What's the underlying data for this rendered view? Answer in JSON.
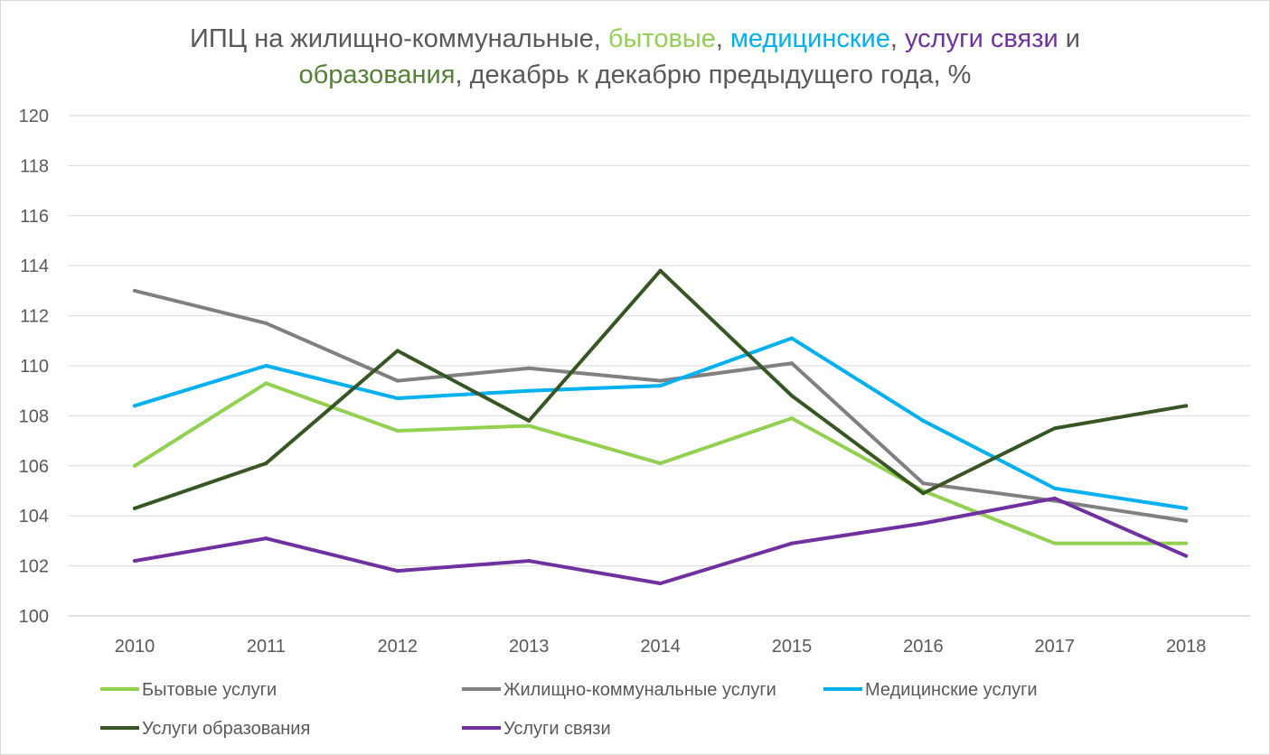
{
  "chart_data": {
    "type": "line",
    "title_segments": [
      {
        "text": "ИПЦ на жилищно-коммунальные, ",
        "color": "#595959"
      },
      {
        "text": "бытовые",
        "color": "#92d050"
      },
      {
        "text": ", ",
        "color": "#595959"
      },
      {
        "text": "медицинские",
        "color": "#00b0f0"
      },
      {
        "text": ", ",
        "color": "#595959"
      },
      {
        "text": "услуги связи",
        "color": "#7030a0"
      },
      {
        "text": " и",
        "color": "#595959"
      },
      {
        "text": "образования",
        "color": "#538135",
        "newline": true
      },
      {
        "text": ", декабрь к декабрю предыдущего года, %",
        "color": "#595959"
      }
    ],
    "categories": [
      "2010",
      "2011",
      "2012",
      "2013",
      "2014",
      "2015",
      "2016",
      "2017",
      "2018"
    ],
    "ylim": [
      100,
      120
    ],
    "yticks": [
      100,
      102,
      104,
      106,
      108,
      110,
      112,
      114,
      116,
      118,
      120
    ],
    "grid": true,
    "legend_position": "bottom",
    "series": [
      {
        "name": "Бытовые услуги",
        "color": "#92d050",
        "values": [
          106.0,
          109.3,
          107.4,
          107.6,
          106.1,
          107.9,
          105.0,
          102.9,
          102.9
        ]
      },
      {
        "name": "Жилищно-коммунальные услуги",
        "color": "#808080",
        "values": [
          113.0,
          111.7,
          109.4,
          109.9,
          109.4,
          110.1,
          105.3,
          104.6,
          103.8
        ]
      },
      {
        "name": "Медицинские услуги",
        "color": "#00b0f0",
        "values": [
          108.4,
          110.0,
          108.7,
          109.0,
          109.2,
          111.1,
          107.8,
          105.1,
          104.3
        ]
      },
      {
        "name": "Услуги образования",
        "color": "#375623",
        "values": [
          104.3,
          106.1,
          110.6,
          107.8,
          113.8,
          108.8,
          104.9,
          107.5,
          108.4
        ]
      },
      {
        "name": "Услуги связи",
        "color": "#7030a0",
        "values": [
          102.2,
          103.1,
          101.8,
          102.2,
          101.3,
          102.9,
          103.7,
          104.7,
          102.4
        ]
      }
    ]
  }
}
